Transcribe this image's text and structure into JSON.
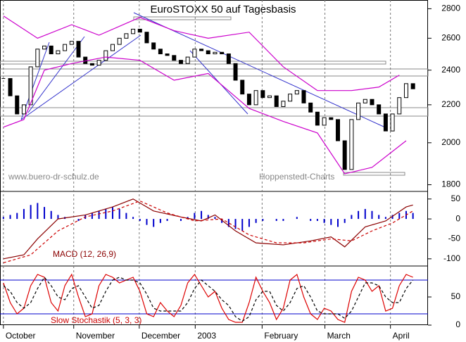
{
  "chart_data": [
    {
      "type": "candlestick",
      "title": "EuroSTOXX 50 auf Tagesbasis",
      "annotations": [
        "www.buero-dr-schulz.de",
        "Hoppenstedt-Charts"
      ],
      "values": [
        2350,
        2250,
        2150,
        2200,
        2420,
        2530,
        2550,
        2500,
        2520,
        2560,
        2580,
        2480,
        2440,
        2430,
        2460,
        2520,
        2560,
        2600,
        2630,
        2660,
        2640,
        2570,
        2530,
        2500,
        2490,
        2460,
        2440,
        2480,
        2530,
        2520,
        2500,
        2510,
        2500,
        2440,
        2340,
        2260,
        2200,
        2280,
        2240,
        2250,
        2190,
        2220,
        2260,
        2280,
        2210,
        2160,
        2090,
        2130,
        2120,
        2010,
        1870,
        2120,
        2210,
        2230,
        2200,
        2150,
        2060,
        2150,
        2240,
        2320,
        2290
      ],
      "color": "#000000",
      "up_color": "#ffffff",
      "series": [
        {
          "color": "#cc00cc",
          "x": [
            0,
            5,
            10,
            14,
            20,
            25,
            30,
            36,
            41,
            46,
            51,
            55,
            58
          ],
          "values": [
            2750,
            2600,
            2690,
            2620,
            2740,
            2650,
            2600,
            2640,
            2420,
            2280,
            2280,
            2300,
            2370
          ]
        },
        {
          "color": "#cc00cc",
          "x": [
            0,
            3,
            6,
            10,
            15,
            20,
            25,
            30,
            36,
            41,
            46,
            50,
            54,
            59
          ],
          "values": [
            2080,
            2120,
            2400,
            2440,
            2480,
            2460,
            2340,
            2380,
            2180,
            2110,
            2050,
            1850,
            1880,
            2010
          ]
        }
      ],
      "log": true,
      "ylim": [
        1770,
        2862
      ],
      "yticks": [
        1800,
        2000,
        2200,
        2400,
        2600,
        2800
      ]
    },
    {
      "type": "macd",
      "label": "MACD (12, 26,9)",
      "histogram": {
        "color": "#0000cc",
        "values": [
          5,
          10,
          15,
          25,
          35,
          40,
          30,
          20,
          10,
          5,
          0,
          -5,
          10,
          15,
          20,
          25,
          30,
          25,
          15,
          5,
          -5,
          -15,
          -20,
          -10,
          -5,
          0,
          -5,
          5,
          15,
          20,
          10,
          5,
          -10,
          -20,
          -25,
          -30,
          -20,
          -10,
          -5,
          0,
          -5,
          -5,
          0,
          5,
          0,
          -5,
          -5,
          -10,
          -15,
          -20,
          -10,
          10,
          20,
          25,
          20,
          10,
          5,
          10,
          15,
          20,
          15
        ]
      },
      "series": [
        {
          "color": "#8b0000",
          "dash": false,
          "x": [
            0,
            3,
            5,
            8,
            12,
            16,
            19,
            22,
            26,
            29,
            31,
            34,
            37,
            41,
            45,
            48,
            50,
            53,
            56,
            59,
            60
          ],
          "values": [
            -100,
            -90,
            -50,
            0,
            10,
            30,
            50,
            20,
            5,
            -5,
            10,
            -30,
            -60,
            -65,
            -55,
            -45,
            -70,
            -20,
            -5,
            30,
            35
          ]
        },
        {
          "color": "#cc0000",
          "dash": true,
          "x": [
            0,
            4,
            8,
            12,
            16,
            20,
            24,
            28,
            32,
            36,
            40,
            44,
            48,
            51,
            54,
            57,
            60
          ],
          "values": [
            -110,
            -90,
            -30,
            5,
            20,
            45,
            15,
            -5,
            0,
            -40,
            -60,
            -60,
            -50,
            -55,
            -30,
            -10,
            20
          ]
        }
      ],
      "ylim": [
        -118,
        69
      ],
      "yticks": [
        -100,
        -50,
        0,
        50
      ]
    },
    {
      "type": "line",
      "label": "Slow Stochastik (5, 3, 3)",
      "series": [
        {
          "color": "#dd0000",
          "dash": false,
          "values": [
            75,
            40,
            20,
            30,
            70,
            90,
            85,
            40,
            25,
            70,
            90,
            50,
            15,
            20,
            70,
            90,
            85,
            75,
            80,
            85,
            60,
            20,
            15,
            40,
            25,
            15,
            35,
            75,
            90,
            70,
            50,
            60,
            30,
            10,
            5,
            5,
            40,
            85,
            60,
            40,
            10,
            30,
            80,
            90,
            50,
            20,
            10,
            30,
            25,
            10,
            5,
            60,
            85,
            80,
            60,
            70,
            25,
            30,
            70,
            90,
            85
          ]
        },
        {
          "color": "#000000",
          "dash": true,
          "values": [
            70,
            60,
            40,
            30,
            40,
            65,
            85,
            70,
            50,
            45,
            65,
            70,
            50,
            30,
            35,
            60,
            80,
            85,
            80,
            80,
            75,
            55,
            30,
            25,
            25,
            25,
            25,
            40,
            65,
            80,
            70,
            60,
            45,
            35,
            15,
            7,
            15,
            45,
            60,
            60,
            35,
            25,
            40,
            65,
            70,
            50,
            25,
            20,
            20,
            20,
            12,
            25,
            50,
            75,
            75,
            70,
            50,
            40,
            40,
            65,
            80
          ]
        }
      ],
      "hlines": [
        80,
        20
      ],
      "hline_color": "#0000cc",
      "ylim": [
        0,
        105
      ],
      "yticks": [
        0,
        50
      ],
      "xlim": [
        -0.5,
        62.2
      ],
      "xticks": [
        {
          "value": 0,
          "label": "October"
        },
        {
          "value": 10.3,
          "label": "November"
        },
        {
          "value": 19.9,
          "label": "December"
        },
        {
          "value": 28.1,
          "label": "2003"
        },
        {
          "value": 37.9,
          "label": "February"
        },
        {
          "value": 47.1,
          "label": "March"
        },
        {
          "value": 56.7,
          "label": "April"
        }
      ]
    }
  ]
}
